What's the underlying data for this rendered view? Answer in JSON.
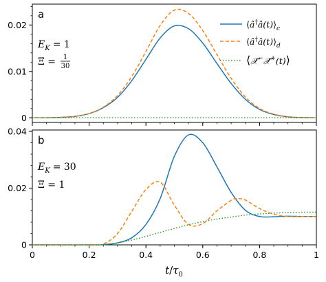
{
  "chart_data": [
    {
      "panel_label": "a",
      "type": "line",
      "annotation": {
        "ek_lhs": "E",
        "ek_sub": "K",
        "ek_rhs": "= 1",
        "xi_lhs": "Ξ =",
        "xi_num": "1",
        "xi_den": "30"
      },
      "xlim": [
        0,
        1
      ],
      "ylim": [
        -0.001,
        0.0245
      ],
      "yticks": [
        0,
        0.01,
        0.02
      ],
      "ytick_labels": [
        "0",
        "0.01",
        "0.02"
      ],
      "legend": [
        {
          "lhs": "⟨",
          "main": "â",
          "dag": "†",
          "main2": "â(t)",
          "rhs": "⟩",
          "sub": "c"
        },
        {
          "lhs": "⟨",
          "main": "â",
          "dag": "†",
          "main2": "â(t)",
          "rhs": "⟩",
          "sub": "d"
        },
        {
          "lhs": "⟨",
          "main": "𝒳̂",
          "dag": "−",
          "main2": "𝒳̂",
          "sup2": "+",
          "tail": "(t)",
          "rhs": "⟩",
          "sub": ""
        }
      ],
      "series": [
        {
          "x": [
            0,
            0.05,
            0.1,
            0.15,
            0.2,
            0.25,
            0.3,
            0.35,
            0.4,
            0.45,
            0.5,
            0.55,
            0.6,
            0.65,
            0.7,
            0.75,
            0.8,
            0.85,
            0.9,
            0.95,
            1.0
          ],
          "y": [
            0,
            0,
            0.0001,
            0.0003,
            0.0009,
            0.0022,
            0.0044,
            0.008,
            0.0126,
            0.0172,
            0.0198,
            0.0192,
            0.0161,
            0.0117,
            0.0074,
            0.004,
            0.0018,
            0.0007,
            0.0002,
            5e-05,
            0
          ]
        },
        {
          "x": [
            0,
            0.05,
            0.1,
            0.15,
            0.2,
            0.25,
            0.3,
            0.35,
            0.4,
            0.45,
            0.5,
            0.55,
            0.6,
            0.65,
            0.7,
            0.75,
            0.8,
            0.85,
            0.9,
            0.95,
            1.0
          ],
          "y": [
            0,
            0,
            0.0001,
            0.0003,
            0.0009,
            0.0023,
            0.0048,
            0.0089,
            0.0143,
            0.0199,
            0.0232,
            0.0225,
            0.0188,
            0.0136,
            0.0085,
            0.0045,
            0.002,
            0.0008,
            0.0002,
            5e-05,
            0
          ]
        },
        {
          "x": [
            0,
            0.25,
            0.5,
            0.75,
            1.0
          ],
          "y": [
            0,
            0,
            0,
            0,
            0
          ]
        }
      ]
    },
    {
      "panel_label": "b",
      "type": "line",
      "annotation": {
        "ek_lhs": "E",
        "ek_sub": "K",
        "ek_rhs": "= 30",
        "xi_lhs": "Ξ = 1"
      },
      "xlim": [
        0,
        1
      ],
      "ylim": [
        0,
        0.0405
      ],
      "yticks": [
        0,
        0.02,
        0.04
      ],
      "ytick_labels": [
        "0",
        "0.02",
        "0.04"
      ],
      "xticks": [
        0,
        0.2,
        0.4,
        0.6,
        0.8,
        1.0
      ],
      "xtick_labels": [
        "0",
        "0.2",
        "0.4",
        "0.6",
        "0.8",
        "1"
      ],
      "xlabel": {
        "t": "t",
        "slash": "/",
        "tau": "τ",
        "sub": "0"
      },
      "series": [
        {
          "x": [
            0,
            0.2,
            0.25,
            0.3,
            0.35,
            0.4,
            0.45,
            0.5,
            0.55,
            0.6,
            0.65,
            0.7,
            0.75,
            0.8,
            0.85,
            0.9,
            0.95,
            1.0
          ],
          "y": [
            0,
            0,
            0.0001,
            0.0007,
            0.0025,
            0.0072,
            0.0163,
            0.0312,
            0.0388,
            0.036,
            0.0275,
            0.0185,
            0.0122,
            0.01,
            0.0099,
            0.0101,
            0.01,
            0.01
          ]
        },
        {
          "x": [
            0,
            0.2,
            0.25,
            0.3,
            0.35,
            0.4,
            0.45,
            0.5,
            0.55,
            0.6,
            0.65,
            0.7,
            0.72,
            0.75,
            0.8,
            0.85,
            0.9,
            0.95,
            1.0
          ],
          "y": [
            0,
            0,
            0.0003,
            0.004,
            0.0118,
            0.0195,
            0.0221,
            0.014,
            0.0072,
            0.0075,
            0.012,
            0.0157,
            0.0163,
            0.0158,
            0.0128,
            0.0108,
            0.01,
            0.01,
            0.01
          ]
        },
        {
          "x": [
            0,
            0.2,
            0.25,
            0.3,
            0.35,
            0.4,
            0.45,
            0.5,
            0.55,
            0.6,
            0.65,
            0.7,
            0.75,
            0.8,
            0.85,
            0.9,
            0.95,
            1.0
          ],
          "y": [
            0,
            0,
            0.0001,
            0.0007,
            0.0017,
            0.003,
            0.0044,
            0.0058,
            0.0071,
            0.0082,
            0.0091,
            0.0098,
            0.0105,
            0.0109,
            0.0112,
            0.0114,
            0.0115,
            0.0115
          ]
        }
      ]
    }
  ],
  "colors": {
    "series_c": "#1f77b4",
    "series_d": "#ff7f0e",
    "series_x": "#2ca02c"
  }
}
